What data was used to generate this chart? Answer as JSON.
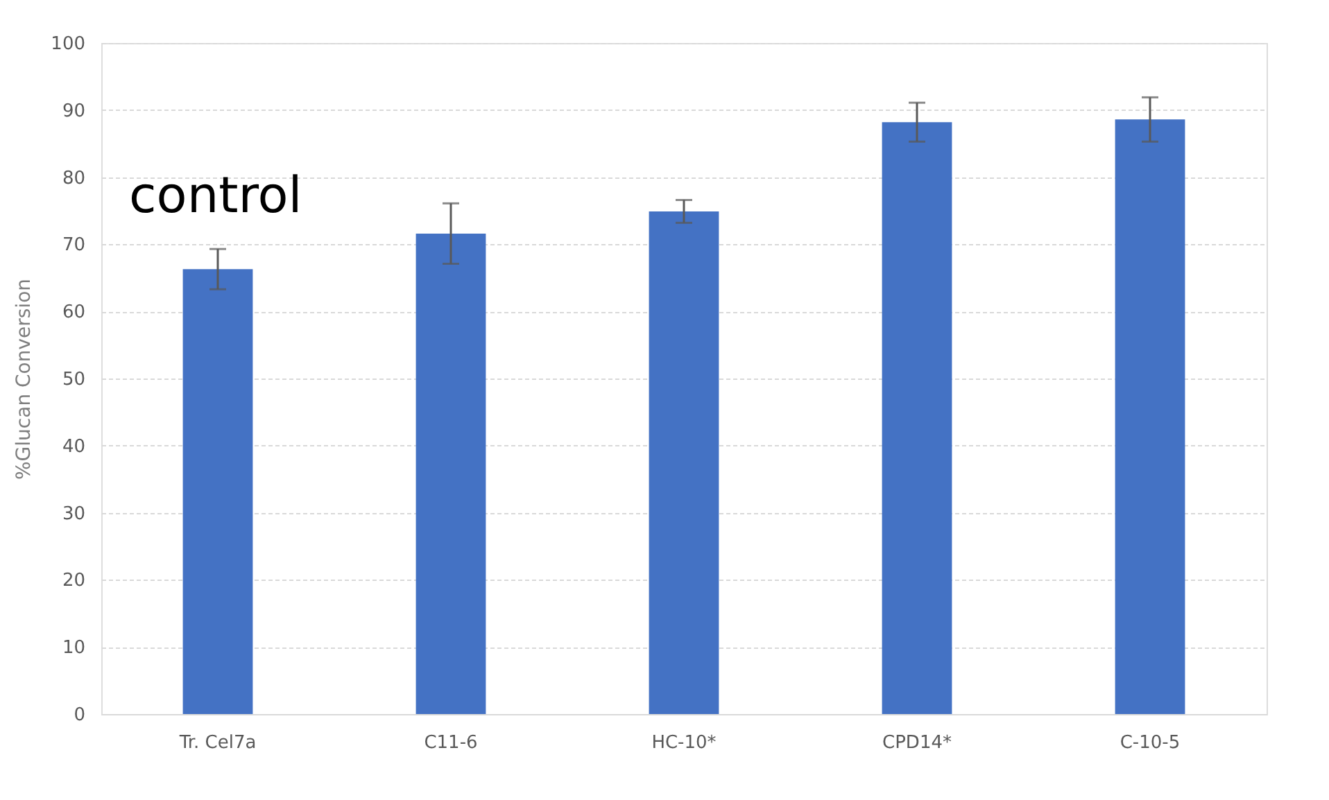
{
  "chart_data": {
    "type": "bar",
    "ylabel": "%Glucan Conversion",
    "categories": [
      "Tr. Cel7a",
      "C11-6",
      "HC-10*",
      "CPD14*",
      "C-10-5"
    ],
    "values": [
      66.3,
      71.6,
      74.9,
      88.2,
      88.6
    ],
    "errors": [
      3.0,
      4.5,
      1.7,
      2.9,
      3.3
    ],
    "color": "#4472c4",
    "ylim": [
      0,
      100
    ],
    "yticks": [
      0,
      10,
      20,
      30,
      40,
      50,
      60,
      70,
      80,
      90,
      100
    ],
    "grid": "y",
    "annotations": [
      "control"
    ]
  }
}
